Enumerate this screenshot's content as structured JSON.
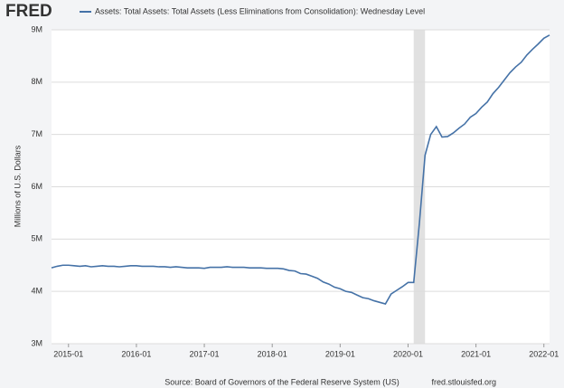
{
  "chart_data": {
    "type": "line",
    "brand": "FRED",
    "y_label": "Millions of U.S. Dollars",
    "source": "Source: Board of Governors of the Federal Reserve System (US)",
    "url": "fred.stlouisfed.org",
    "x": [
      "2014-10",
      "2014-11",
      "2014-12",
      "2015-01",
      "2015-02",
      "2015-03",
      "2015-04",
      "2015-05",
      "2015-06",
      "2015-07",
      "2015-08",
      "2015-09",
      "2015-10",
      "2015-11",
      "2015-12",
      "2016-01",
      "2016-02",
      "2016-03",
      "2016-04",
      "2016-05",
      "2016-06",
      "2016-07",
      "2016-08",
      "2016-09",
      "2016-10",
      "2016-11",
      "2016-12",
      "2017-01",
      "2017-02",
      "2017-03",
      "2017-04",
      "2017-05",
      "2017-06",
      "2017-07",
      "2017-08",
      "2017-09",
      "2017-10",
      "2017-11",
      "2017-12",
      "2018-01",
      "2018-02",
      "2018-03",
      "2018-04",
      "2018-05",
      "2018-06",
      "2018-07",
      "2018-08",
      "2018-09",
      "2018-10",
      "2018-11",
      "2018-12",
      "2019-01",
      "2019-02",
      "2019-03",
      "2019-04",
      "2019-05",
      "2019-06",
      "2019-07",
      "2019-08",
      "2019-09",
      "2019-10",
      "2019-11",
      "2019-12",
      "2020-01",
      "2020-02",
      "2020-03",
      "2020-04",
      "2020-05",
      "2020-06",
      "2020-07",
      "2020-08",
      "2020-09",
      "2020-10",
      "2020-11",
      "2020-12",
      "2021-01",
      "2021-02",
      "2021-03",
      "2021-04",
      "2021-05",
      "2021-06",
      "2021-07",
      "2021-08",
      "2021-09",
      "2021-10",
      "2021-11",
      "2021-12",
      "2022-01",
      "2022-02"
    ],
    "series": [
      {
        "name": "Assets: Total Assets: Total Assets (Less Eliminations from Consolidation): Wednesday Level",
        "color": "#4572a7",
        "values": [
          4450000,
          4480000,
          4500000,
          4500000,
          4490000,
          4480000,
          4490000,
          4470000,
          4480000,
          4490000,
          4480000,
          4480000,
          4470000,
          4480000,
          4490000,
          4490000,
          4480000,
          4480000,
          4480000,
          4470000,
          4470000,
          4460000,
          4470000,
          4460000,
          4450000,
          4450000,
          4450000,
          4440000,
          4460000,
          4460000,
          4460000,
          4470000,
          4460000,
          4460000,
          4460000,
          4450000,
          4450000,
          4450000,
          4440000,
          4440000,
          4440000,
          4430000,
          4400000,
          4390000,
          4340000,
          4330000,
          4290000,
          4250000,
          4180000,
          4140000,
          4080000,
          4050000,
          4000000,
          3980000,
          3930000,
          3880000,
          3860000,
          3820000,
          3790000,
          3760000,
          3950000,
          4020000,
          4090000,
          4170000,
          4170000,
          5300000,
          6600000,
          7000000,
          7150000,
          6950000,
          6960000,
          7030000,
          7120000,
          7200000,
          7330000,
          7400000,
          7520000,
          7620000,
          7780000,
          7900000,
          8040000,
          8180000,
          8290000,
          8380000,
          8520000,
          8630000,
          8730000,
          8840000,
          8900000
        ]
      }
    ],
    "recession": [
      "2020-02",
      "2020-04"
    ],
    "xlim": [
      "2014-10",
      "2022-02"
    ],
    "xticks": [
      "2015-01",
      "2016-01",
      "2017-01",
      "2018-01",
      "2019-01",
      "2020-01",
      "2021-01",
      "2022-01"
    ],
    "ylim": [
      3000000,
      9000000
    ],
    "yticks": [
      {
        "value": 3000000,
        "label": "3M"
      },
      {
        "value": 4000000,
        "label": "4M"
      },
      {
        "value": 5000000,
        "label": "5M"
      },
      {
        "value": 6000000,
        "label": "6M"
      },
      {
        "value": 7000000,
        "label": "7M"
      },
      {
        "value": 8000000,
        "label": "8M"
      },
      {
        "value": 9000000,
        "label": "9M"
      }
    ],
    "grid": true
  }
}
